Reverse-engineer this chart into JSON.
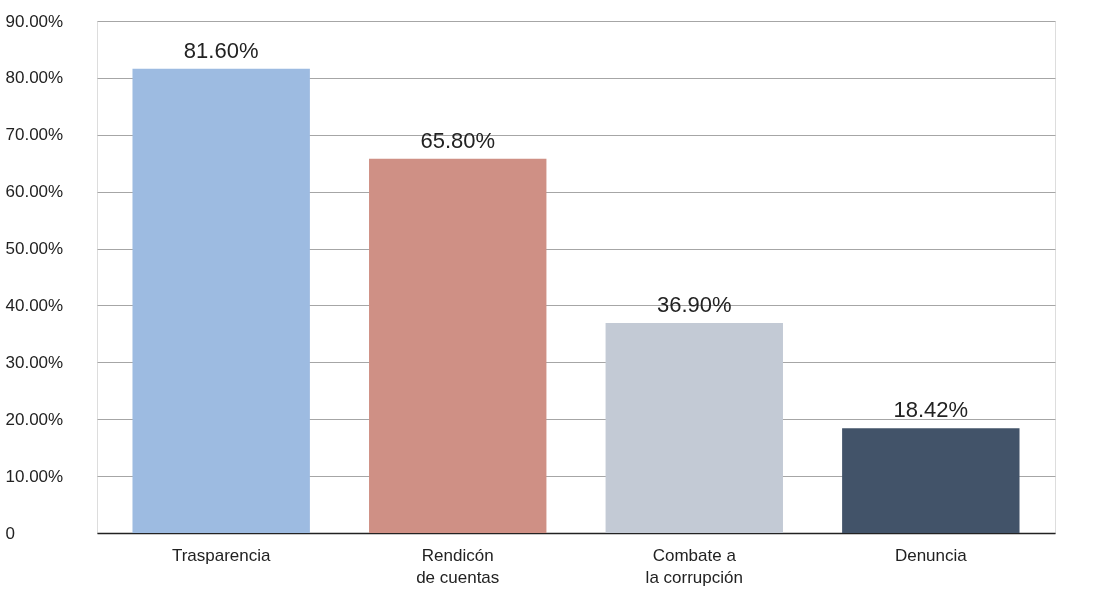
{
  "chart_data": {
    "type": "bar",
    "categories": [
      "Trasparencia",
      "Rendicón\nde cuentas",
      "Combate a\nla corrupción",
      "Denuncia"
    ],
    "values": [
      81.6,
      65.8,
      36.9,
      18.42
    ],
    "colors": [
      "#9dbbe1",
      "#cf9085",
      "#c3cad5",
      "#425369"
    ],
    "value_labels": [
      "81.60%",
      "65.80%",
      "36.90%",
      "18.42%"
    ],
    "ylim": [
      0,
      90
    ],
    "yticks": [
      0,
      {
        "value": 10,
        "label": "10.00%"
      },
      {
        "value": 20,
        "label": "20.00%"
      },
      {
        "value": 30,
        "label": "30.00%"
      },
      {
        "value": 40,
        "label": "40.00%"
      },
      {
        "value": 50,
        "label": "50.00%"
      },
      {
        "value": 60,
        "label": "60.00%"
      },
      {
        "value": 70,
        "label": "70.00%"
      },
      {
        "value": 80,
        "label": "80.00%"
      },
      {
        "value": 90,
        "label": "90.00%"
      }
    ],
    "grid": "y"
  }
}
